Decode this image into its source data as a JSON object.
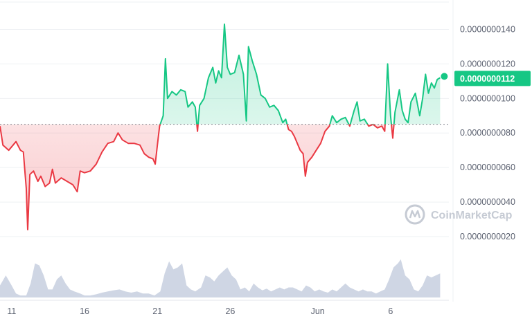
{
  "chart_data": {
    "type": "line",
    "ylim": [
      1.6e-09,
      1.45e-08
    ],
    "reference_value": 8.5e-09,
    "y_ticks": [
      {
        "value": 2e-09,
        "label": "0.0000000020"
      },
      {
        "value": 4e-09,
        "label": "0.0000000040"
      },
      {
        "value": 6e-09,
        "label": "0.0000000060"
      },
      {
        "value": 8e-09,
        "label": "0.0000000080"
      },
      {
        "value": 1e-08,
        "label": "0.0000000100"
      },
      {
        "value": 1.2e-08,
        "label": "0.0000000120"
      },
      {
        "value": 1.4e-08,
        "label": "0.0000000140"
      }
    ],
    "x_ticks": [
      {
        "day": 11,
        "label": "11"
      },
      {
        "day": 16,
        "label": "16"
      },
      {
        "day": 21,
        "label": "21"
      },
      {
        "day": 26,
        "label": "26"
      },
      {
        "day": 32,
        "label": "Jun"
      },
      {
        "day": 37,
        "label": "6"
      }
    ],
    "xlim": [
      10.2,
      41.0
    ],
    "last_price_label": "0.0000000112",
    "colors": {
      "up": "#16c784",
      "down": "#ea3943",
      "tag_bg": "#16c784",
      "volume": "#cfd6e4"
    },
    "series": [
      {
        "values": [
          [
            10.2,
            8.4
          ],
          [
            10.4,
            7.3
          ],
          [
            10.8,
            7.0
          ],
          [
            11.0,
            7.2
          ],
          [
            11.3,
            7.5
          ],
          [
            11.6,
            7.0
          ],
          [
            11.8,
            6.9
          ],
          [
            12.0,
            4.8
          ],
          [
            12.1,
            2.4
          ],
          [
            12.25,
            5.6
          ],
          [
            12.5,
            5.8
          ],
          [
            12.8,
            5.2
          ],
          [
            13.0,
            5.5
          ],
          [
            13.3,
            4.9
          ],
          [
            13.6,
            5.1
          ],
          [
            13.8,
            5.9
          ],
          [
            14.0,
            5.1
          ],
          [
            14.4,
            5.4
          ],
          [
            14.8,
            5.2
          ],
          [
            15.2,
            5.0
          ],
          [
            15.5,
            4.6
          ],
          [
            15.7,
            5.8
          ],
          [
            16.0,
            5.7
          ],
          [
            16.4,
            5.8
          ],
          [
            16.8,
            6.2
          ],
          [
            17.2,
            6.9
          ],
          [
            17.6,
            7.4
          ],
          [
            18.0,
            7.5
          ],
          [
            18.3,
            8.0
          ],
          [
            18.6,
            7.6
          ],
          [
            19.0,
            7.4
          ],
          [
            19.4,
            7.4
          ],
          [
            19.8,
            7.3
          ],
          [
            20.1,
            6.8
          ],
          [
            20.4,
            6.6
          ],
          [
            20.7,
            6.5
          ],
          [
            20.85,
            6.2
          ],
          [
            21.0,
            7.3
          ],
          [
            21.15,
            8.4
          ],
          [
            21.4,
            9.0
          ],
          [
            21.55,
            12.3
          ],
          [
            21.7,
            10.0
          ],
          [
            22.0,
            10.4
          ],
          [
            22.3,
            10.2
          ],
          [
            22.6,
            10.5
          ],
          [
            22.9,
            10.4
          ],
          [
            23.1,
            9.5
          ],
          [
            23.4,
            9.8
          ],
          [
            23.6,
            9.5
          ],
          [
            23.75,
            8.1
          ],
          [
            23.9,
            9.6
          ],
          [
            24.2,
            10.0
          ],
          [
            24.5,
            11.2
          ],
          [
            24.8,
            11.8
          ],
          [
            25.0,
            10.9
          ],
          [
            25.2,
            11.6
          ],
          [
            25.4,
            11.2
          ],
          [
            25.6,
            14.3
          ],
          [
            25.8,
            11.8
          ],
          [
            26.0,
            11.4
          ],
          [
            26.3,
            11.5
          ],
          [
            26.6,
            12.5
          ],
          [
            26.9,
            11.4
          ],
          [
            27.1,
            8.7
          ],
          [
            27.25,
            13.0
          ],
          [
            27.5,
            12.2
          ],
          [
            27.8,
            11.4
          ],
          [
            28.1,
            10.2
          ],
          [
            28.4,
            10.0
          ],
          [
            28.7,
            9.5
          ],
          [
            29.0,
            9.6
          ],
          [
            29.3,
            9.3
          ],
          [
            29.6,
            8.6
          ],
          [
            29.8,
            8.8
          ],
          [
            30.0,
            8.2
          ],
          [
            30.2,
            8.1
          ],
          [
            30.4,
            7.8
          ],
          [
            30.6,
            7.4
          ],
          [
            30.8,
            7.0
          ],
          [
            31.0,
            6.8
          ],
          [
            31.15,
            5.5
          ],
          [
            31.3,
            6.3
          ],
          [
            31.6,
            6.6
          ],
          [
            31.9,
            7.0
          ],
          [
            32.2,
            7.4
          ],
          [
            32.5,
            8.1
          ],
          [
            32.8,
            8.4
          ],
          [
            33.0,
            9.0
          ],
          [
            33.3,
            8.6
          ],
          [
            33.6,
            8.8
          ],
          [
            33.9,
            8.9
          ],
          [
            34.2,
            8.4
          ],
          [
            34.5,
            9.3
          ],
          [
            34.7,
            9.8
          ],
          [
            34.9,
            8.7
          ],
          [
            35.2,
            8.8
          ],
          [
            35.5,
            8.4
          ],
          [
            35.8,
            8.5
          ],
          [
            36.1,
            8.3
          ],
          [
            36.4,
            8.4
          ],
          [
            36.6,
            8.1
          ],
          [
            36.8,
            12.0
          ],
          [
            37.0,
            9.0
          ],
          [
            37.15,
            7.7
          ],
          [
            37.3,
            9.2
          ],
          [
            37.6,
            10.5
          ],
          [
            37.8,
            9.3
          ],
          [
            38.0,
            8.8
          ],
          [
            38.2,
            8.6
          ],
          [
            38.4,
            9.8
          ],
          [
            38.7,
            10.3
          ],
          [
            39.0,
            9.0
          ],
          [
            39.2,
            10.0
          ],
          [
            39.4,
            11.4
          ],
          [
            39.6,
            10.3
          ],
          [
            39.8,
            10.9
          ],
          [
            40.0,
            10.6
          ],
          [
            40.2,
            11.1
          ],
          [
            40.4,
            11.2
          ]
        ]
      }
    ],
    "volume": [
      [
        10.2,
        0.3
      ],
      [
        10.6,
        0.55
      ],
      [
        11.0,
        0.3
      ],
      [
        11.3,
        0.1
      ],
      [
        11.6,
        0.05
      ],
      [
        12.0,
        0.05
      ],
      [
        12.3,
        0.35
      ],
      [
        12.6,
        0.85
      ],
      [
        12.9,
        0.8
      ],
      [
        13.2,
        0.55
      ],
      [
        13.5,
        0.2
      ],
      [
        13.8,
        0.2
      ],
      [
        14.1,
        0.45
      ],
      [
        14.4,
        0.55
      ],
      [
        14.7,
        0.35
      ],
      [
        15.0,
        0.2
      ],
      [
        15.3,
        0.15
      ],
      [
        15.7,
        0.1
      ],
      [
        16.0,
        0.05
      ],
      [
        16.4,
        0.05
      ],
      [
        16.8,
        0.08
      ],
      [
        17.2,
        0.12
      ],
      [
        17.6,
        0.15
      ],
      [
        18.0,
        0.18
      ],
      [
        18.4,
        0.2
      ],
      [
        18.8,
        0.15
      ],
      [
        19.2,
        0.12
      ],
      [
        19.6,
        0.15
      ],
      [
        20.0,
        0.1
      ],
      [
        20.4,
        0.1
      ],
      [
        20.8,
        0.05
      ],
      [
        21.2,
        0.15
      ],
      [
        21.5,
        0.6
      ],
      [
        21.8,
        0.9
      ],
      [
        22.1,
        0.7
      ],
      [
        22.4,
        0.75
      ],
      [
        22.7,
        0.85
      ],
      [
        23.0,
        0.3
      ],
      [
        23.3,
        0.2
      ],
      [
        23.6,
        0.15
      ],
      [
        24.0,
        0.25
      ],
      [
        24.3,
        0.55
      ],
      [
        24.6,
        0.5
      ],
      [
        24.9,
        0.4
      ],
      [
        25.2,
        0.55
      ],
      [
        25.5,
        0.65
      ],
      [
        25.8,
        0.75
      ],
      [
        26.1,
        0.55
      ],
      [
        26.4,
        0.45
      ],
      [
        26.7,
        0.2
      ],
      [
        27.0,
        0.25
      ],
      [
        27.3,
        0.15
      ],
      [
        27.6,
        0.35
      ],
      [
        27.9,
        0.25
      ],
      [
        28.2,
        0.18
      ],
      [
        28.5,
        0.22
      ],
      [
        28.8,
        0.15
      ],
      [
        29.1,
        0.2
      ],
      [
        29.4,
        0.25
      ],
      [
        29.7,
        0.2
      ],
      [
        30.0,
        0.25
      ],
      [
        30.3,
        0.25
      ],
      [
        30.6,
        0.2
      ],
      [
        30.9,
        0.15
      ],
      [
        31.2,
        0.3
      ],
      [
        31.5,
        0.25
      ],
      [
        31.8,
        0.15
      ],
      [
        32.1,
        0.2
      ],
      [
        32.4,
        0.15
      ],
      [
        32.7,
        0.12
      ],
      [
        33.0,
        0.2
      ],
      [
        33.3,
        0.15
      ],
      [
        33.6,
        0.25
      ],
      [
        33.9,
        0.35
      ],
      [
        34.2,
        0.25
      ],
      [
        34.5,
        0.2
      ],
      [
        34.8,
        0.15
      ],
      [
        35.1,
        0.2
      ],
      [
        35.4,
        0.15
      ],
      [
        35.7,
        0.15
      ],
      [
        36.0,
        0.1
      ],
      [
        36.3,
        0.15
      ],
      [
        36.6,
        0.2
      ],
      [
        36.9,
        0.45
      ],
      [
        37.2,
        0.75
      ],
      [
        37.5,
        0.85
      ],
      [
        37.7,
        0.95
      ],
      [
        38.0,
        0.55
      ],
      [
        38.3,
        0.45
      ],
      [
        38.6,
        0.2
      ],
      [
        38.9,
        0.15
      ],
      [
        39.2,
        0.3
      ],
      [
        39.5,
        0.55
      ],
      [
        39.8,
        0.5
      ],
      [
        40.1,
        0.55
      ],
      [
        40.4,
        0.6
      ]
    ],
    "watermark": "CoinMarketCap"
  }
}
